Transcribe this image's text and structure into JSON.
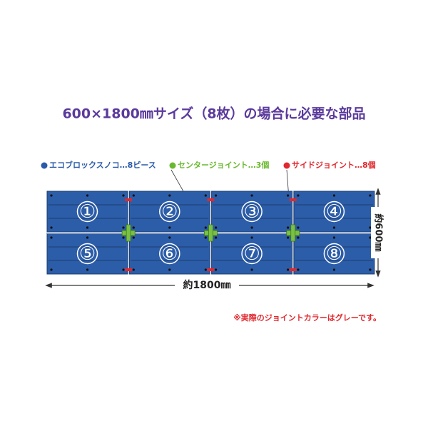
{
  "title": "600×1800㎜サイズ（8枚）の場合に必要な部品",
  "legend": [
    {
      "label": "エコブロックスノコ…8ピース",
      "color": "#2a5aa8"
    },
    {
      "label": "センタージョイント…3個",
      "color": "#6ab82e"
    },
    {
      "label": "サイドジョイント…8個",
      "color": "#e0282e"
    }
  ],
  "panels": [
    "①",
    "②",
    "③",
    "④",
    "⑤",
    "⑥",
    "⑦",
    "⑧"
  ],
  "dimensions": {
    "width": "約1800㎜",
    "height": "約600㎜"
  },
  "note": "※実際のジョイントカラーはグレーです。"
}
